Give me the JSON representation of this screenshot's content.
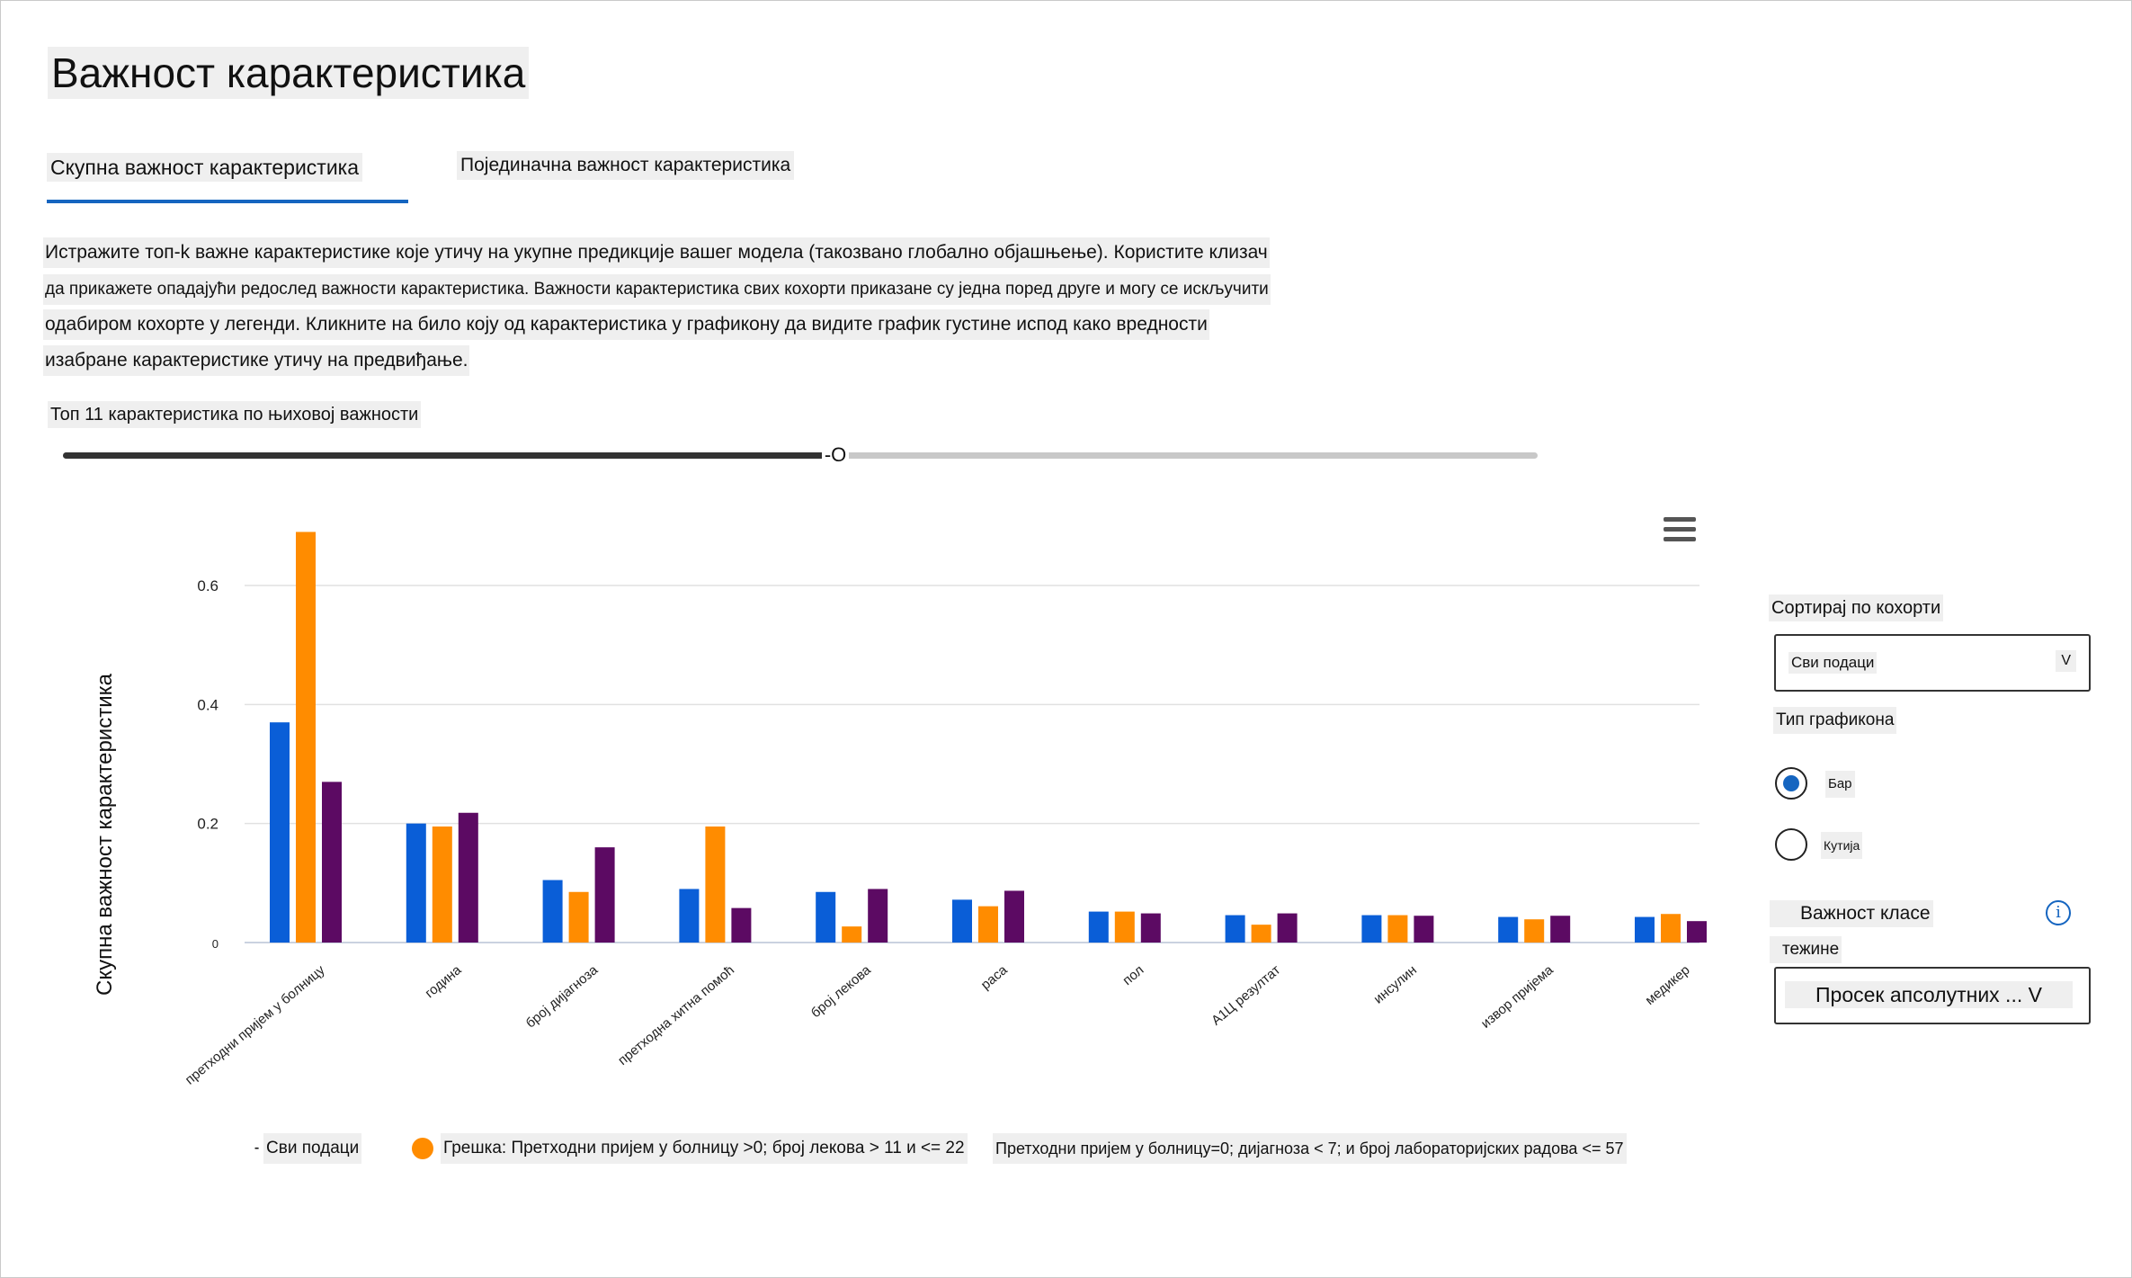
{
  "title": "Важност карактеристика",
  "tabs": {
    "aggregate": "Скупна важност карактеристика",
    "individual": "Појединачна важност карактеристика"
  },
  "description": [
    "Истражите топ-k важне карактеристике које утичу на укупне предикције вашег модела (такозвано глобално објашњење). Користите клизач",
    "да прикажете опадајући редослед важности карактеристика. Важности карактеристика свих кохорти приказане су једна поред друге и могу се искључити",
    "одабиром кохорте у легенди. Кликните на било коју од карактеристика у графикону да видите график густине испод како вредности",
    "изабране карактеристике утичу на предвиђање."
  ],
  "slider": {
    "label": "Топ 11 карактеристика по њиховој важности",
    "thumb_glyph": "-O",
    "value": 11,
    "max": 21
  },
  "colors": {
    "accent": "#1565c0",
    "series1": "#0a5ed7",
    "series2": "#ff8c00",
    "series3": "#5c0a63",
    "grid": "#e1e1e1"
  },
  "chart_data": {
    "type": "bar",
    "ylabel": "Скупна важност карактеристика",
    "ylim": [
      0,
      0.7
    ],
    "yticks": [
      "0",
      "0.2",
      "0.4",
      "0.6"
    ],
    "categories": [
      "претходни пријем у болницу",
      "година",
      "број дијагноза",
      "претходна хитна помоћ",
      "број лекова",
      "раса",
      "пол",
      "А1Ц резултат",
      "инсулин",
      "извор пријема",
      "медикер"
    ],
    "series": [
      {
        "name": "Сви подаци",
        "values": [
          0.37,
          0.2,
          0.105,
          0.09,
          0.085,
          0.072,
          0.052,
          0.046,
          0.046,
          0.043,
          0.043
        ]
      },
      {
        "name": "Грешка: Претходни пријем у болницу >0; број лекова > 11 и <= 22",
        "values": [
          0.69,
          0.195,
          0.085,
          0.195,
          0.027,
          0.061,
          0.052,
          0.03,
          0.046,
          0.039,
          0.048
        ]
      },
      {
        "name": "Претходни пријем у болницу=0; дијагноза < 7; и број лабораторијских радова <= 57",
        "values": [
          0.27,
          0.218,
          0.16,
          0.058,
          0.09,
          0.087,
          0.049,
          0.049,
          0.045,
          0.045,
          0.036
        ]
      }
    ]
  },
  "legend": {
    "item1": "Сви подаци",
    "item2": "Грешка: Претходни пријем у болницу >0; број лекова > 11 и <= 22",
    "item3": "Претходни пријем у болницу=0; дијагноза < 7; и број лабораторијских радова <= 57"
  },
  "right_panel": {
    "sort_label": "Сортирај по кохорти",
    "sort_value": "Сви подаци",
    "sort_chevron": "V",
    "chart_type_label": "Тип графикона",
    "radio_bar": "Бар",
    "radio_box": "Кутија",
    "class_importance_label": "Важност класе",
    "weights_label": "тежине",
    "weights_value": "Просек апсолутних ... V",
    "info_glyph": "i"
  }
}
